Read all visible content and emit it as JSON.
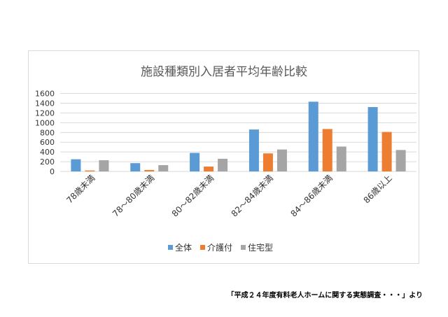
{
  "chart_data": {
    "type": "bar",
    "title": "施設種類別入居者平均年齢比較",
    "categories": [
      "78歳未満",
      "78～80歳未満",
      "80～82歳未満",
      "82～84歳未満",
      "84～86歳未満",
      "86歳以上"
    ],
    "series": [
      {
        "name": "全体",
        "color": "#5b9bd5",
        "values": [
          250,
          170,
          380,
          860,
          1430,
          1320
        ]
      },
      {
        "name": "介護付",
        "color": "#ed7d31",
        "values": [
          20,
          30,
          100,
          370,
          870,
          810
        ]
      },
      {
        "name": "住宅型",
        "color": "#a5a5a5",
        "values": [
          230,
          130,
          260,
          450,
          510,
          440
        ]
      }
    ],
    "yticks": [
      0,
      200,
      400,
      600,
      800,
      1000,
      1200,
      1400,
      1600
    ],
    "ylim": [
      0,
      1600
    ],
    "xlabel": "",
    "ylabel": "",
    "grid": true,
    "legend": "bottom"
  },
  "source_note": "「平成２４年度有料老人ホームに関する実態調査・・・」より"
}
